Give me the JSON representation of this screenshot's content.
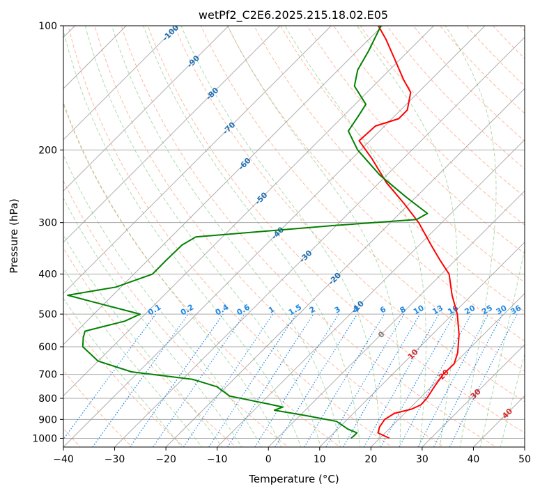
{
  "chart_data": {
    "type": "line",
    "subtype": "skew-t log-p diagram",
    "title": "wetPf2_C2E6.2025.215.18.02.E05",
    "xlabel": "Temperature (°C)",
    "ylabel": "Pressure (hPa)",
    "xlim": [
      -40,
      50
    ],
    "ylim": [
      1050,
      100
    ],
    "y_scale": "log (inverted)",
    "x_ticks": [
      -40,
      -30,
      -20,
      -10,
      0,
      10,
      20,
      30,
      40,
      50
    ],
    "y_ticks": [
      100,
      200,
      300,
      400,
      500,
      600,
      700,
      800,
      900,
      1000
    ],
    "grid": true,
    "skew_deg": 45,
    "series": [
      {
        "color": "#ff0000",
        "points": [
          {
            "p": 1000,
            "t": 21.9
          },
          {
            "p": 970,
            "t": 18.6
          },
          {
            "p": 940,
            "t": 17.8
          },
          {
            "p": 900,
            "t": 17.3
          },
          {
            "p": 870,
            "t": 18.0
          },
          {
            "p": 850,
            "t": 20.5
          },
          {
            "p": 830,
            "t": 21.5
          },
          {
            "p": 800,
            "t": 21.4
          },
          {
            "p": 750,
            "t": 20.6
          },
          {
            "p": 700,
            "t": 19.9
          },
          {
            "p": 660,
            "t": 20.0
          },
          {
            "p": 620,
            "t": 18.5
          },
          {
            "p": 560,
            "t": 15.2
          },
          {
            "p": 500,
            "t": 10.9
          },
          {
            "p": 450,
            "t": 6.2
          },
          {
            "p": 400,
            "t": 1.5
          },
          {
            "p": 370,
            "t": -3.0
          },
          {
            "p": 340,
            "t": -7.7
          },
          {
            "p": 300,
            "t": -14.5
          },
          {
            "p": 270,
            "t": -21.0
          },
          {
            "p": 240,
            "t": -28.6
          },
          {
            "p": 210,
            "t": -36.1
          },
          {
            "p": 190,
            "t": -42.1
          },
          {
            "p": 175,
            "t": -41.8
          },
          {
            "p": 168,
            "t": -38.7
          },
          {
            "p": 160,
            "t": -38.7
          },
          {
            "p": 145,
            "t": -41.5
          },
          {
            "p": 135,
            "t": -45.4
          },
          {
            "p": 120,
            "t": -51.3
          },
          {
            "p": 108,
            "t": -56.6
          },
          {
            "p": 100,
            "t": -60.8
          }
        ]
      },
      {
        "color": "#008000",
        "points": [
          {
            "p": 1000,
            "t": 14.4
          },
          {
            "p": 985,
            "t": 14.5
          },
          {
            "p": 970,
            "t": 14.5
          },
          {
            "p": 950,
            "t": 12.0
          },
          {
            "p": 910,
            "t": 8.3
          },
          {
            "p": 880,
            "t": 1.0
          },
          {
            "p": 855,
            "t": -6.0
          },
          {
            "p": 840,
            "t": -5.0
          },
          {
            "p": 825,
            "t": -8.6
          },
          {
            "p": 790,
            "t": -17.5
          },
          {
            "p": 750,
            "t": -21.8
          },
          {
            "p": 720,
            "t": -27.9
          },
          {
            "p": 690,
            "t": -41.4
          },
          {
            "p": 650,
            "t": -50.0
          },
          {
            "p": 600,
            "t": -55.8
          },
          {
            "p": 570,
            "t": -57.5
          },
          {
            "p": 550,
            "t": -58.4
          },
          {
            "p": 520,
            "t": -52.6
          },
          {
            "p": 500,
            "t": -51.0
          },
          {
            "p": 470,
            "t": -61.5
          },
          {
            "p": 450,
            "t": -68.8
          },
          {
            "p": 430,
            "t": -61.0
          },
          {
            "p": 400,
            "t": -56.4
          },
          {
            "p": 370,
            "t": -56.4
          },
          {
            "p": 340,
            "t": -56.3
          },
          {
            "p": 325,
            "t": -55.2
          },
          {
            "p": 305,
            "t": -30.5
          },
          {
            "p": 295,
            "t": -15.5
          },
          {
            "p": 285,
            "t": -14.6
          },
          {
            "p": 260,
            "t": -22.0
          },
          {
            "p": 230,
            "t": -31.4
          },
          {
            "p": 200,
            "t": -40.6
          },
          {
            "p": 180,
            "t": -46.1
          },
          {
            "p": 165,
            "t": -47.1
          },
          {
            "p": 155,
            "t": -47.9
          },
          {
            "p": 140,
            "t": -53.7
          },
          {
            "p": 128,
            "t": -56.2
          },
          {
            "p": 115,
            "t": -57.8
          },
          {
            "p": 100,
            "t": -60.3
          }
        ]
      }
    ],
    "isotherm_labels": [
      "-100",
      "-90",
      "-80",
      "-70",
      "-60",
      "-50",
      "-40",
      "-30",
      "-20",
      "-10",
      "0",
      "10",
      "20",
      "30",
      "40"
    ],
    "mixing_ratio_labels": [
      "0.1",
      "0.2",
      "0.4",
      "0.6",
      "1",
      "1.5",
      "2",
      "3",
      "4",
      "6",
      "8",
      "10",
      "13",
      "16",
      "20",
      "25",
      "30",
      "36"
    ],
    "mixing_ratio_values": [
      0.1,
      0.2,
      0.4,
      0.6,
      1,
      1.5,
      2,
      3,
      4,
      6,
      8,
      10,
      13,
      16,
      20,
      25,
      30,
      36
    ],
    "colors": {
      "temperature": "#ff0000",
      "dewpoint": "#008000",
      "isotherm": "#999999",
      "isobar": "#aaaaaa",
      "dry_adiabat": "#ff7f50",
      "moist_adiabat": "#5cb85c",
      "mixing_ratio": "#1e88e5",
      "isotherm_label_cold": "#1f6fb4",
      "isotherm_label_warm": "#d62728",
      "isotherm_label_zero": "#808080"
    }
  }
}
